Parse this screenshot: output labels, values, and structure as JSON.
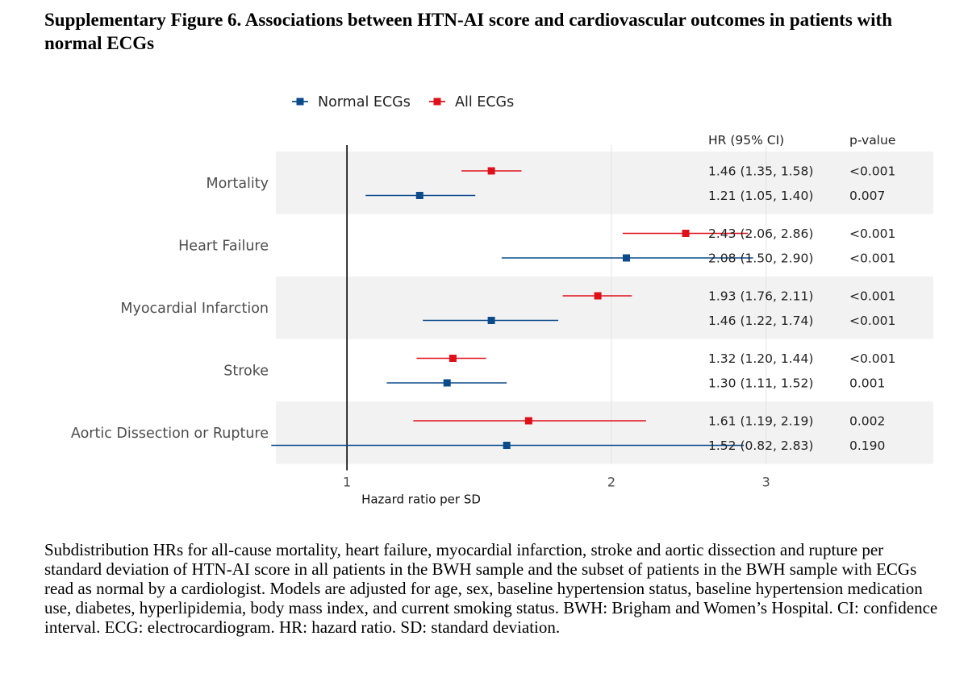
{
  "title": "Supplementary Figure 6. Associations between HTN-AI score and cardiovascular outcomes in patients with normal ECGs",
  "caption": "Subdistribution HRs for all-cause mortality, heart failure, myocardial infarction, stroke and aortic dissection and rupture per standard deviation of HTN-AI score in all patients in the BWH sample and the subset of patients in the BWH sample with ECGs read as normal by a cardiologist. Models are adjusted for age, sex, baseline hypertension status, baseline hypertension medication use, diabetes, hyperlipidemia, body mass index, and current smoking status. BWH: Brigham and Women’s Hospital. CI: confidence interval. ECG: electrocardiogram. HR: hazard ratio. SD: standard deviation.",
  "colors": {
    "normal": "#0B4A8B",
    "all": "#E0101A",
    "band": "#F2F2F2",
    "grid": "#E3E3E3"
  },
  "chart_data": {
    "type": "forest",
    "xlabel": "Hazard ratio per SD",
    "xscale": "log",
    "xlim": [
      0.83,
      4.65
    ],
    "xticks": [
      1,
      2,
      3
    ],
    "reference_line": 1,
    "legend": [
      "Normal ECGs",
      "All ECGs"
    ],
    "legend_position": "top",
    "table_headers": {
      "hr": "HR (95% CI)",
      "p": "p-value"
    },
    "outcomes": [
      {
        "label": "Mortality",
        "banded": true,
        "rows": [
          {
            "series": "All ECGs",
            "hr": 1.46,
            "lo": 1.35,
            "hi": 1.58,
            "hr_text": "1.46 (1.35, 1.58)",
            "p": "<0.001"
          },
          {
            "series": "Normal ECGs",
            "hr": 1.21,
            "lo": 1.05,
            "hi": 1.4,
            "hr_text": "1.21 (1.05, 1.40)",
            "p": "0.007"
          }
        ]
      },
      {
        "label": "Heart Failure",
        "banded": false,
        "rows": [
          {
            "series": "All ECGs",
            "hr": 2.43,
            "lo": 2.06,
            "hi": 2.86,
            "hr_text": "2.43 (2.06, 2.86)",
            "p": "<0.001"
          },
          {
            "series": "Normal ECGs",
            "hr": 2.08,
            "lo": 1.5,
            "hi": 2.9,
            "hr_text": "2.08 (1.50, 2.90)",
            "p": "<0.001"
          }
        ]
      },
      {
        "label": "Myocardial Infarction",
        "banded": true,
        "rows": [
          {
            "series": "All ECGs",
            "hr": 1.93,
            "lo": 1.76,
            "hi": 2.11,
            "hr_text": "1.93 (1.76, 2.11)",
            "p": "<0.001"
          },
          {
            "series": "Normal ECGs",
            "hr": 1.46,
            "lo": 1.22,
            "hi": 1.74,
            "hr_text": "1.46 (1.22, 1.74)",
            "p": "<0.001"
          }
        ]
      },
      {
        "label": "Stroke",
        "banded": false,
        "rows": [
          {
            "series": "All ECGs",
            "hr": 1.32,
            "lo": 1.2,
            "hi": 1.44,
            "hr_text": "1.32 (1.20, 1.44)",
            "p": "<0.001"
          },
          {
            "series": "Normal ECGs",
            "hr": 1.3,
            "lo": 1.11,
            "hi": 1.52,
            "hr_text": "1.30 (1.11, 1.52)",
            "p": "0.001"
          }
        ]
      },
      {
        "label": "Aortic Dissection or Rupture",
        "banded": true,
        "rows": [
          {
            "series": "All ECGs",
            "hr": 1.61,
            "lo": 1.19,
            "hi": 2.19,
            "hr_text": "1.61 (1.19, 2.19)",
            "p": "0.002"
          },
          {
            "series": "Normal ECGs",
            "hr": 1.52,
            "lo": 0.82,
            "hi": 2.83,
            "hr_text": "1.52 (0.82, 2.83)",
            "p": "0.190"
          }
        ]
      }
    ]
  }
}
